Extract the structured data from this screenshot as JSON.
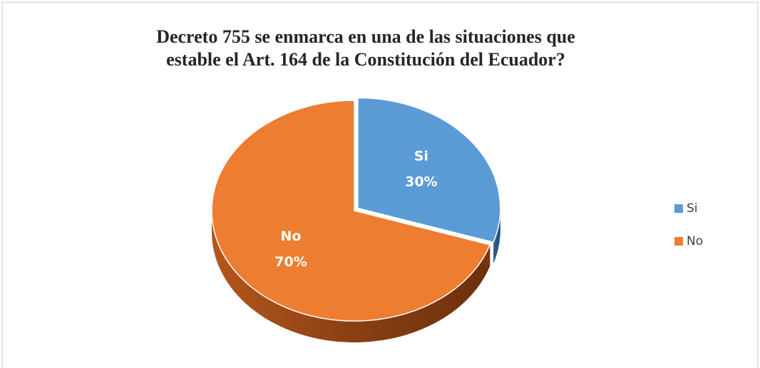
{
  "chart_data": {
    "type": "pie",
    "title": "Decreto 755 se enmarca en una de las situaciones que estable el Art. 164 de la Constitución del Ecuador?",
    "categories": [
      "Si",
      "No"
    ],
    "values": [
      30,
      70
    ],
    "value_labels": [
      "30%",
      "70%"
    ],
    "colors": [
      "#5b9bd5",
      "#ed7d31"
    ],
    "legend": "right"
  }
}
